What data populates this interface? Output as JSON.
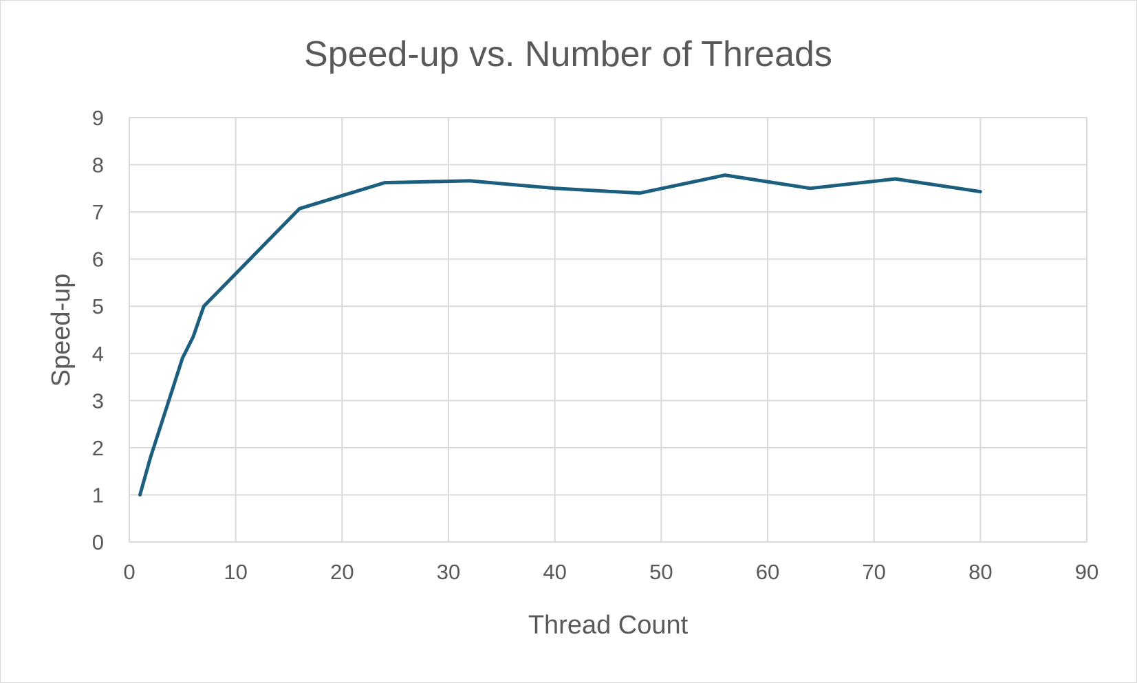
{
  "chart_data": {
    "type": "line",
    "title": "Speed-up vs. Number of Threads",
    "xlabel": "Thread Count",
    "ylabel": "Speed-up",
    "xlim": [
      0,
      90
    ],
    "ylim": [
      0,
      9
    ],
    "x_ticks": [
      0,
      10,
      20,
      30,
      40,
      50,
      60,
      70,
      80,
      90
    ],
    "y_ticks": [
      0,
      1,
      2,
      3,
      4,
      5,
      6,
      7,
      8,
      9
    ],
    "grid": true,
    "legend": "none",
    "series": [
      {
        "color": "#1b5e7e",
        "x": [
          1,
          2,
          3,
          4,
          5,
          6,
          7,
          16,
          24,
          32,
          40,
          48,
          56,
          64,
          72,
          80
        ],
        "y": [
          1.0,
          1.8,
          2.5,
          3.2,
          3.9,
          4.35,
          5.0,
          7.07,
          7.62,
          7.66,
          7.5,
          7.4,
          7.78,
          7.5,
          7.7,
          7.43
        ]
      }
    ]
  }
}
